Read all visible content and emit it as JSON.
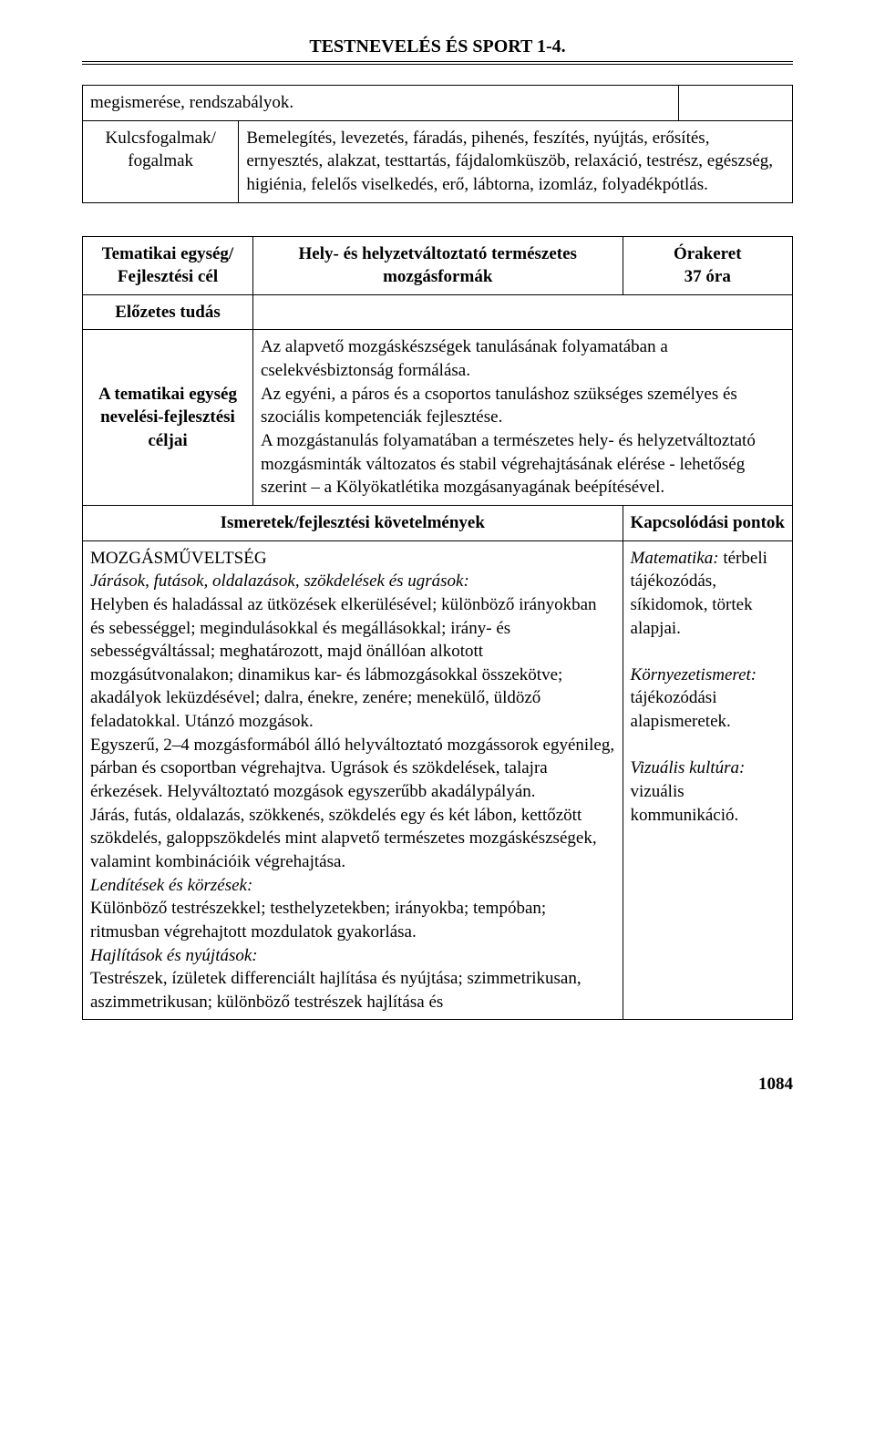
{
  "header": {
    "title": "TESTNEVELÉS ÉS SPORT 1-4."
  },
  "table1": {
    "row1_left": "megismerése, rendszabályok.",
    "row2_left": "Kulcsfogalmak/ fogalmak",
    "row2_right": "Bemelegítés, levezetés, fáradás, pihenés, feszítés, nyújtás, erősítés, ernyesztés, alakzat, testtartás, fájdalomküszöb, relaxáció, testrész, egészség, higiénia, felelős viselkedés, erő, lábtorna, izomláz, folyadékpótlás."
  },
  "table2": {
    "row1_left": "Tematikai egység/ Fejlesztési cél",
    "row1_mid": "Hely- és helyzetváltoztató természetes mozgásformák",
    "row1_right_top": "Órakeret",
    "row1_right_bottom": "37 óra",
    "row2_left": "Előzetes tudás",
    "row3_left": "A tematikai egység nevelési-fejlesztési céljai",
    "row3_right": "Az alapvető mozgáskészségek tanulásának folyamatában a cselekvésbiztonság formálása.\nAz egyéni, a páros és a csoportos tanuláshoz szükséges személyes és szociális kompetenciák fejlesztése.\nA mozgástanulás folyamatában a természetes hely- és helyzetváltoztató mozgásminták változatos és stabil végrehajtásának elérése - lehetőség szerint – a Kölyökatlétika mozgásanyagának beépítésével.",
    "row4_left": "Ismeretek/fejlesztési követelmények",
    "row4_right": "Kapcsolódási pontok",
    "row5_left_heading": "MOZGÁSMŰVELTSÉG",
    "row5_left_p1_italic": "Járások, futások, oldalazások, szökdelések és ugrások:",
    "row5_left_p1": "Helyben és haladással az ütközések elkerülésével; különböző irányokban és sebességgel; megindulásokkal és megállásokkal; irány- és sebességváltással; meghatározott, majd önállóan alkotott mozgásútvonalakon; dinamikus kar- és lábmozgásokkal összekötve; akadályok leküzdésével; dalra, énekre, zenére; menekülő, üldöző feladatokkal. Utánzó mozgások.",
    "row5_left_p2": "Egyszerű, 2–4 mozgásformából álló helyváltoztató mozgássorok egyénileg, párban és csoportban végrehajtva. Ugrások és szökdelések, talajra érkezések. Helyváltoztató mozgások egyszerűbb akadálypályán.",
    "row5_left_p3": "Járás, futás, oldalazás, szökkenés, szökdelés egy és két lábon, kettőzött szökdelés, galoppszökdelés mint alapvető természetes mozgáskészségek, valamint kombinációik végrehajtása.",
    "row5_left_p4_italic": "Lendítések és körzések:",
    "row5_left_p4": "Különböző testrészekkel; testhelyzetekben; irányokba; tempóban; ritmusban végrehajtott mozdulatok gyakorlása.",
    "row5_left_p5_italic": "Hajlítások és nyújtások:",
    "row5_left_p5": "Testrészek, ízületek differenciált hajlítása és nyújtása; szimmetrikusan, aszimmetrikusan; különböző testrészek hajlítása és",
    "row5_right_p1_label": "Matematika:",
    "row5_right_p1": " térbeli tájékozódás, síkidomok, törtek alapjai.",
    "row5_right_p2_label": "Környezetismeret:",
    "row5_right_p2": " tájékozódási alapismeretek.",
    "row5_right_p3_label": "Vizuális kultúra:",
    "row5_right_p3": " vizuális kommunikáció."
  },
  "footer": {
    "page_number": "1084"
  }
}
